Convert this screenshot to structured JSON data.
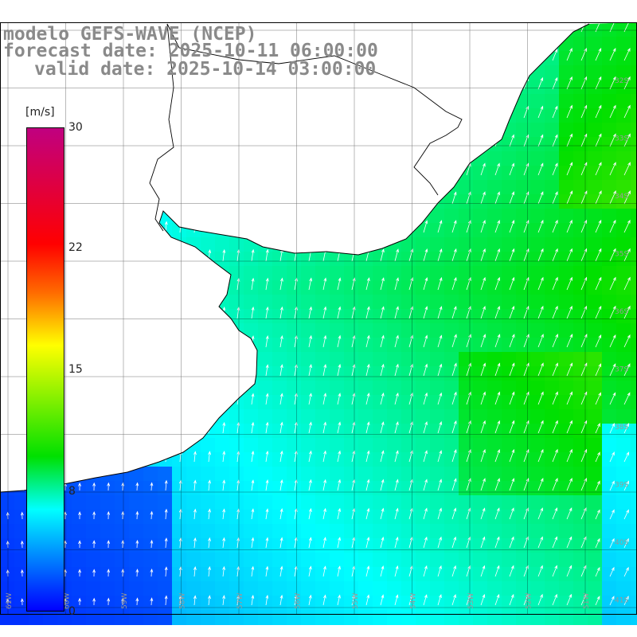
{
  "titles": {
    "line1": "modelo GEFS-WAVE (NCEP)",
    "line2": "forecast date: 2025-10-11 06:00:00",
    "line3": "valid date: 2025-10-14 03:00:00"
  },
  "colorbar": {
    "unit": "[m/s]",
    "ticks": [
      "30",
      "22",
      "15",
      "8",
      "0"
    ],
    "range": [
      0,
      30
    ],
    "colors": [
      "#0000ff",
      "#00ffff",
      "#00e000",
      "#ffff00",
      "#ff6a00",
      "#ff0000",
      "#c00080"
    ]
  },
  "map": {
    "land_color": "#ffffff",
    "grid_color": "#000000",
    "field": "wind speed (m/s) with direction arrows",
    "lat_labels": [
      "32S",
      "33S",
      "34S",
      "35S",
      "36S",
      "37S",
      "38S",
      "39S",
      "40S",
      "41S"
    ],
    "lon_labels": [
      "61W",
      "60W",
      "59W",
      "58W",
      "57W",
      "56W",
      "55W",
      "54W",
      "53W",
      "52W",
      "51W"
    ]
  }
}
